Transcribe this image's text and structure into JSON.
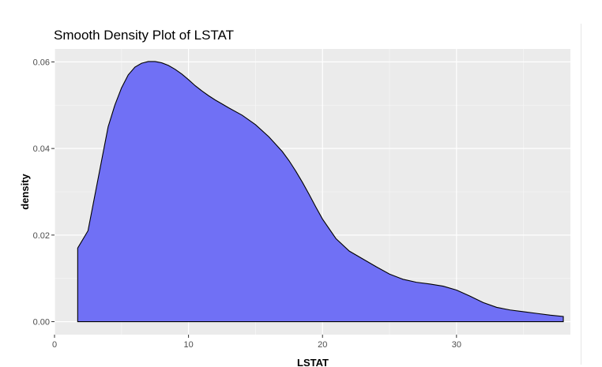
{
  "chart_data": {
    "type": "area",
    "title": "Smooth Density Plot of LSTAT",
    "xlabel": "LSTAT",
    "ylabel": "density",
    "xlim": [
      0,
      38.5
    ],
    "ylim": [
      -0.003,
      0.063
    ],
    "x_ticks": [
      0,
      10,
      20,
      30
    ],
    "x_tick_labels": [
      "0",
      "10",
      "20",
      "30"
    ],
    "y_ticks": [
      0.0,
      0.02,
      0.04,
      0.06
    ],
    "y_tick_labels": [
      "0.00",
      "0.02",
      "0.04",
      "0.06"
    ],
    "grid": true,
    "fill_color": "#7070f5",
    "line_color": "#000000",
    "panel_color": "#ebebeb",
    "series": [
      {
        "x": [
          1.73,
          2.5,
          3.0,
          3.5,
          4.0,
          4.5,
          5.0,
          5.5,
          6.0,
          6.5,
          7.0,
          7.5,
          8.0,
          8.5,
          9.0,
          9.5,
          10.0,
          10.5,
          11.0,
          11.5,
          12.0,
          12.5,
          13.0,
          14.0,
          15.0,
          16.0,
          17.0,
          17.5,
          18.0,
          18.5,
          19.0,
          19.5,
          20.0,
          21.0,
          22.0,
          23.0,
          24.0,
          25.0,
          26.0,
          27.0,
          28.0,
          29.0,
          30.0,
          31.0,
          32.0,
          33.0,
          34.0,
          35.0,
          36.0,
          37.0,
          37.97
        ],
        "y": [
          0.017,
          0.021,
          0.029,
          0.037,
          0.045,
          0.05,
          0.054,
          0.057,
          0.0588,
          0.0597,
          0.0601,
          0.0601,
          0.0598,
          0.0592,
          0.0583,
          0.0572,
          0.0559,
          0.0545,
          0.0533,
          0.0522,
          0.0512,
          0.0503,
          0.0494,
          0.0477,
          0.0455,
          0.0427,
          0.0393,
          0.0372,
          0.0348,
          0.0322,
          0.0294,
          0.0265,
          0.0237,
          0.0192,
          0.0163,
          0.0145,
          0.0127,
          0.011,
          0.0098,
          0.0091,
          0.0087,
          0.0082,
          0.0073,
          0.0059,
          0.0044,
          0.0033,
          0.0027,
          0.0023,
          0.0019,
          0.0015,
          0.0012
        ]
      }
    ]
  }
}
